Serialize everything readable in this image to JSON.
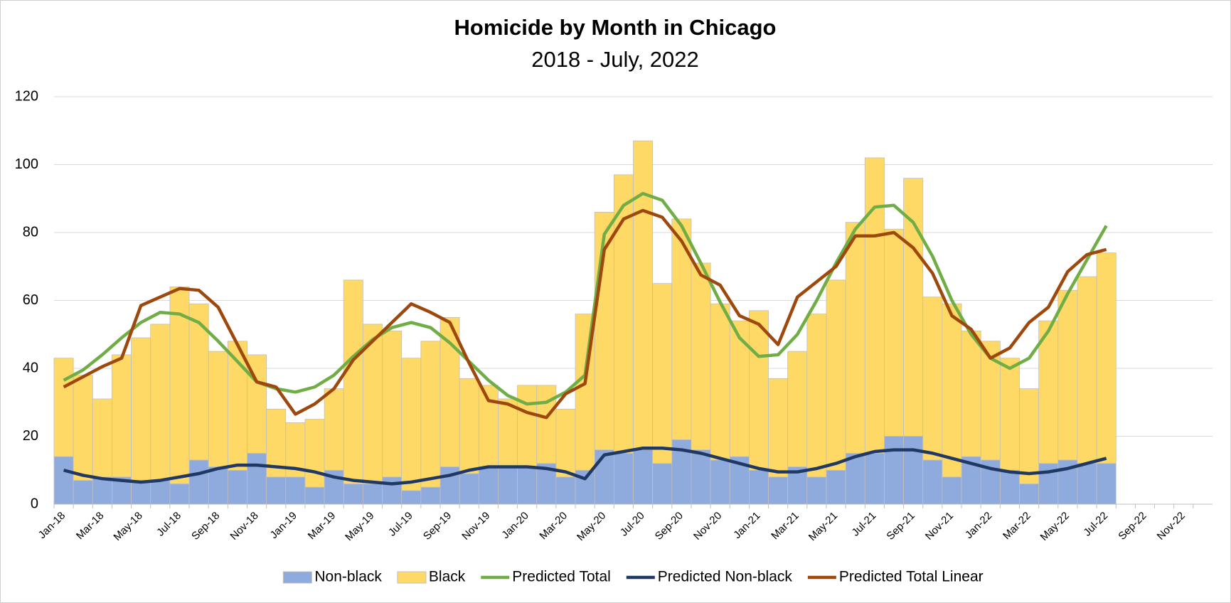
{
  "chart_data": {
    "type": "bar",
    "stacked": true,
    "title": "Homicide by Month in Chicago",
    "subtitle": "2018 - July, 2022",
    "categories": [
      "Jan-18",
      null,
      "Mar-18",
      null,
      "May-18",
      null,
      "Jul-18",
      null,
      "Sep-18",
      null,
      "Nov-18",
      null,
      "Jan-19",
      null,
      "Mar-19",
      null,
      "May-19",
      null,
      "Jul-19",
      null,
      "Sep-19",
      null,
      "Nov-19",
      null,
      "Jan-20",
      null,
      "Mar-20",
      null,
      "May-20",
      null,
      "Jul-20",
      null,
      "Sep-20",
      null,
      "Nov-20",
      null,
      "Jan-21",
      null,
      "Mar-21",
      null,
      "May-21",
      null,
      "Jul-21",
      null,
      "Sep-21",
      null,
      "Nov-21",
      null,
      "Jan-22",
      null,
      "Mar-22",
      null,
      "May-22",
      null,
      "Jul-22",
      null,
      "Sep-22",
      null,
      "Nov-22",
      null
    ],
    "series": [
      {
        "name": "Non-black",
        "type": "bar",
        "color": "#8faadc",
        "values": [
          14,
          7,
          8,
          8,
          7,
          7,
          6,
          13,
          11,
          10,
          15,
          8,
          8,
          5,
          10,
          6,
          6,
          8,
          4,
          5,
          11,
          9,
          11,
          11,
          11,
          12,
          8,
          10,
          16,
          15,
          16,
          12,
          19,
          16,
          13,
          14,
          10,
          8,
          11,
          8,
          10,
          15,
          15,
          20,
          20,
          13,
          8,
          14,
          13,
          10,
          6,
          12,
          13,
          12,
          12,
          null,
          null,
          null,
          null,
          null
        ]
      },
      {
        "name": "Black",
        "type": "bar",
        "color": "#ffd966",
        "values": [
          29,
          31,
          23,
          36,
          42,
          46,
          58,
          46,
          34,
          38,
          29,
          20,
          16,
          20,
          24,
          60,
          47,
          43,
          39,
          43,
          44,
          28,
          24,
          20,
          24,
          23,
          20,
          46,
          70,
          82,
          91,
          53,
          65,
          55,
          46,
          40,
          47,
          29,
          34,
          48,
          56,
          68,
          87,
          61,
          76,
          48,
          51,
          37,
          35,
          33,
          28,
          42,
          50,
          55,
          62,
          null,
          null,
          null,
          null,
          null
        ]
      },
      {
        "name": "Predicted Total",
        "type": "line",
        "color": "#70ad47",
        "values": [
          36.5,
          39.5,
          44,
          49,
          53.5,
          56.5,
          56,
          53.5,
          48,
          42,
          36,
          34,
          33,
          34.5,
          38,
          43.5,
          48.5,
          52,
          53.5,
          52,
          47.5,
          42,
          36.5,
          32,
          29.5,
          30,
          33,
          38,
          79.5,
          88,
          91.5,
          89.5,
          82,
          71,
          59.5,
          49,
          43.5,
          44,
          50,
          60,
          71,
          81,
          87.5,
          88,
          83,
          73,
          60,
          50,
          43,
          40,
          43,
          51,
          62,
          72,
          82,
          null,
          null,
          null,
          null,
          null
        ]
      },
      {
        "name": "Predicted Non-black",
        "type": "line",
        "color": "#1f3864",
        "values": [
          10,
          8.5,
          7.5,
          7,
          6.5,
          7,
          8,
          9,
          10.5,
          11.5,
          11.5,
          11,
          10.5,
          9.5,
          8,
          7,
          6.5,
          6,
          6.5,
          7.5,
          8.5,
          10,
          11,
          11,
          11,
          10.5,
          9.5,
          7.5,
          14.5,
          15.5,
          16.5,
          16.5,
          16,
          15,
          13.5,
          12,
          10.5,
          9.5,
          9.5,
          10.5,
          12,
          14,
          15.5,
          16,
          16,
          15,
          13.5,
          12,
          10.5,
          9.5,
          9,
          9.5,
          10.5,
          12,
          13.5,
          null,
          null,
          null,
          null,
          null
        ]
      },
      {
        "name": "Predicted Total Linear",
        "type": "line",
        "color": "#9e480e",
        "values": [
          34.5,
          37.5,
          40.5,
          43,
          58.5,
          61,
          63.5,
          63,
          58,
          47,
          36,
          34.5,
          26.5,
          29.5,
          34,
          42.5,
          48,
          53.5,
          59,
          56.5,
          53.5,
          41.5,
          30.5,
          29.5,
          27,
          25.5,
          32.5,
          35.5,
          75,
          84,
          86.5,
          84.5,
          77.5,
          67.5,
          64.5,
          55.5,
          53,
          47,
          61,
          65.5,
          70,
          79,
          79,
          80,
          75.5,
          68,
          55.5,
          51.5,
          43,
          46,
          53.5,
          58,
          68.5,
          73.5,
          75,
          null,
          null,
          null,
          null,
          null
        ]
      }
    ],
    "ylim": [
      0,
      120
    ],
    "yticks": [
      0,
      20,
      40,
      60,
      80,
      100,
      120
    ],
    "grid": true,
    "legend": "bottom"
  }
}
